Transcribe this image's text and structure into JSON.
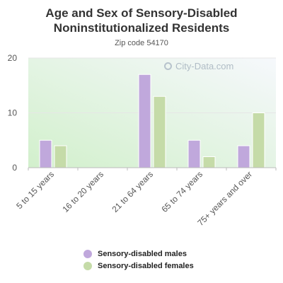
{
  "chart_data": {
    "type": "bar",
    "title": "Age and Sex of Sensory-Disabled Noninstitutionalized Residents",
    "subtitle": "Zip code 54170",
    "categories": [
      "5 to 15 years",
      "16 to 20 years",
      "21 to 64 years",
      "65 to 74 years",
      "75+ years and over"
    ],
    "series": [
      {
        "name": "Sensory-disabled males",
        "values": [
          5,
          0,
          17,
          5,
          4
        ],
        "color": "#c0a8dc"
      },
      {
        "name": "Sensory-disabled females",
        "values": [
          4,
          0,
          13,
          2,
          10
        ],
        "color": "#c5dba8"
      }
    ],
    "ylim": [
      0,
      20
    ],
    "yticks": [
      0,
      10,
      20
    ],
    "grid": true,
    "legend": "bottom"
  },
  "watermark": {
    "text": "City-Data.com",
    "icon": "search-icon"
  }
}
